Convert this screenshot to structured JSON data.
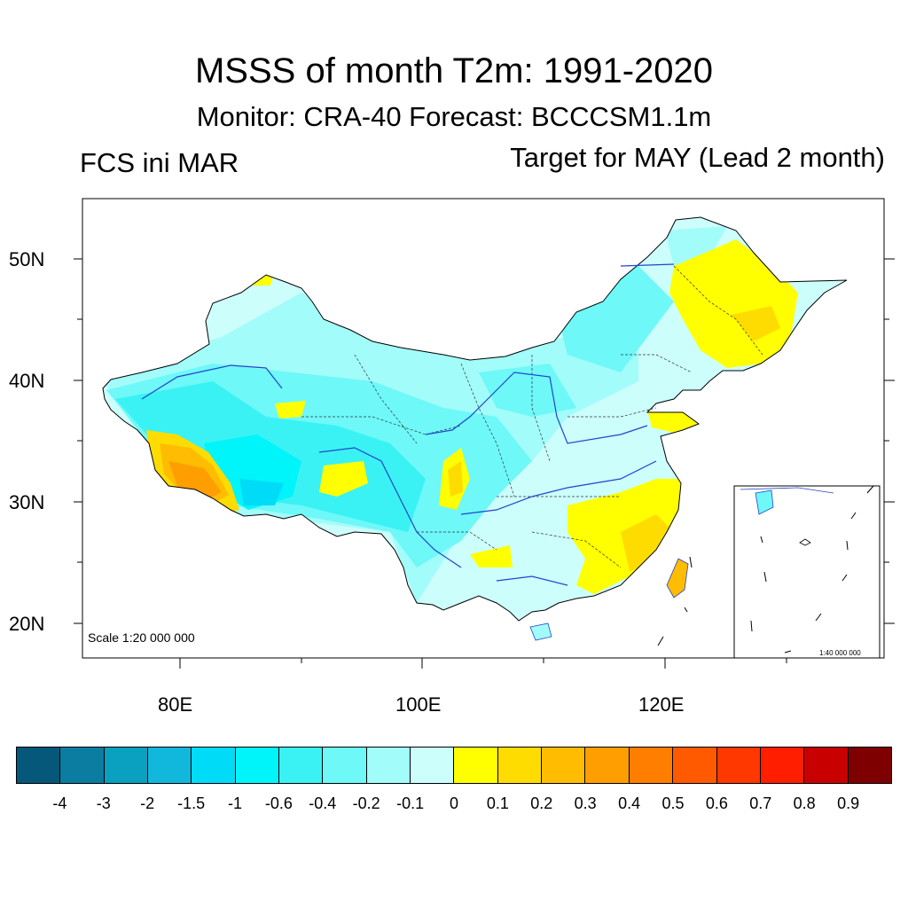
{
  "title": "MSSS of month T2m: 1991-2020",
  "subtitle": "Monitor: CRA-40   Forecast: BCCCSM1.1m",
  "left_label": "FCS ini MAR",
  "right_label": "Target for MAY (Lead 2 month)",
  "scale_main": "Scale 1:20 000 000",
  "scale_inset": "1:40 000 000",
  "lat_labels": [
    "50N",
    "40N",
    "30N",
    "20N"
  ],
  "lon_labels": [
    "80E",
    "100E",
    "120E"
  ],
  "colorbar": {
    "labels": [
      "-4",
      "-3",
      "-2",
      "-1.5",
      "-1",
      "-0.6",
      "-0.4",
      "-0.2",
      "-0.1",
      "0",
      "0.1",
      "0.2",
      "0.3",
      "0.4",
      "0.5",
      "0.6",
      "0.7",
      "0.8",
      "0.9"
    ],
    "colors": [
      "#05587a",
      "#0a7da0",
      "#0aa0bf",
      "#12b8dc",
      "#00dcf8",
      "#00f5fa",
      "#3af2f4",
      "#6ef8f8",
      "#a2fcfa",
      "#ccfefc",
      "#ffff00",
      "#ffdc00",
      "#ffbc00",
      "#ff9e00",
      "#ff7e00",
      "#ff5a00",
      "#ff3800",
      "#ff1e00",
      "#c80000",
      "#7e0000"
    ]
  },
  "chart_data": {
    "type": "heatmap",
    "title": "MSSS of month T2m: 1991-2020",
    "variable": "MSSS",
    "legend_levels": [
      -4,
      -3,
      -2,
      -1.5,
      -1,
      -0.6,
      -0.4,
      -0.2,
      -0.1,
      0,
      0.1,
      0.2,
      0.3,
      0.4,
      0.5,
      0.6,
      0.7,
      0.8,
      0.9
    ],
    "x_ticks": [
      "80E",
      "100E",
      "120E"
    ],
    "y_ticks": [
      "50N",
      "40N",
      "30N",
      "20N"
    ]
  }
}
